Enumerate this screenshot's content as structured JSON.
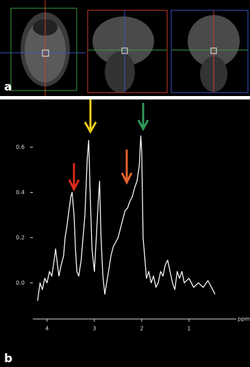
{
  "panel_labels": [
    "a",
    "b"
  ],
  "chart_data": {
    "type": "line",
    "xlabel": "ppm",
    "color": "#ffffff",
    "x_reversed": true,
    "xlim": [
      4.3,
      0
    ],
    "xticks": [
      4,
      3,
      2,
      1
    ],
    "ylim": [
      -0.16,
      0.72
    ],
    "yticks": [
      {
        "value": 0,
        "label": "0.0"
      },
      0.2,
      0.4,
      0.6
    ],
    "x": [
      4.2,
      4.15,
      4.1,
      4.05,
      4.0,
      3.95,
      3.9,
      3.85,
      3.82,
      3.78,
      3.75,
      3.7,
      3.65,
      3.62,
      3.58,
      3.55,
      3.5,
      3.47,
      3.43,
      3.4,
      3.37,
      3.33,
      3.28,
      3.24,
      3.2,
      3.15,
      3.12,
      3.09,
      3.05,
      3.0,
      2.96,
      2.92,
      2.89,
      2.86,
      2.82,
      2.78,
      2.74,
      2.7,
      2.65,
      2.6,
      2.55,
      2.5,
      2.45,
      2.4,
      2.35,
      2.3,
      2.25,
      2.2,
      2.15,
      2.1,
      2.05,
      2.02,
      2.0,
      1.97,
      1.93,
      1.9,
      1.85,
      1.8,
      1.75,
      1.7,
      1.65,
      1.6,
      1.55,
      1.5,
      1.45,
      1.4,
      1.35,
      1.3,
      1.25,
      1.2,
      1.15,
      1.1,
      1.0,
      0.9,
      0.8,
      0.7,
      0.6,
      0.5,
      0.45
    ],
    "values": [
      -0.08,
      0.0,
      -0.03,
      0.02,
      0.0,
      0.05,
      0.03,
      0.1,
      0.15,
      0.08,
      0.03,
      0.08,
      0.12,
      0.2,
      0.25,
      0.3,
      0.38,
      0.4,
      0.3,
      0.15,
      0.05,
      0.03,
      0.1,
      0.2,
      0.3,
      0.55,
      0.63,
      0.4,
      0.15,
      0.05,
      0.2,
      0.35,
      0.45,
      0.2,
      0.03,
      -0.05,
      0.0,
      0.05,
      0.12,
      0.16,
      0.18,
      0.2,
      0.24,
      0.28,
      0.32,
      0.33,
      0.36,
      0.38,
      0.42,
      0.45,
      0.52,
      0.65,
      0.58,
      0.2,
      0.1,
      0.02,
      0.05,
      0.0,
      0.03,
      -0.02,
      0.0,
      0.05,
      0.03,
      0.08,
      0.1,
      0.05,
      0.0,
      -0.03,
      0.05,
      0.02,
      0.05,
      0.0,
      0.02,
      -0.02,
      0.0,
      -0.02,
      0.01,
      -0.03,
      -0.05
    ]
  }
}
